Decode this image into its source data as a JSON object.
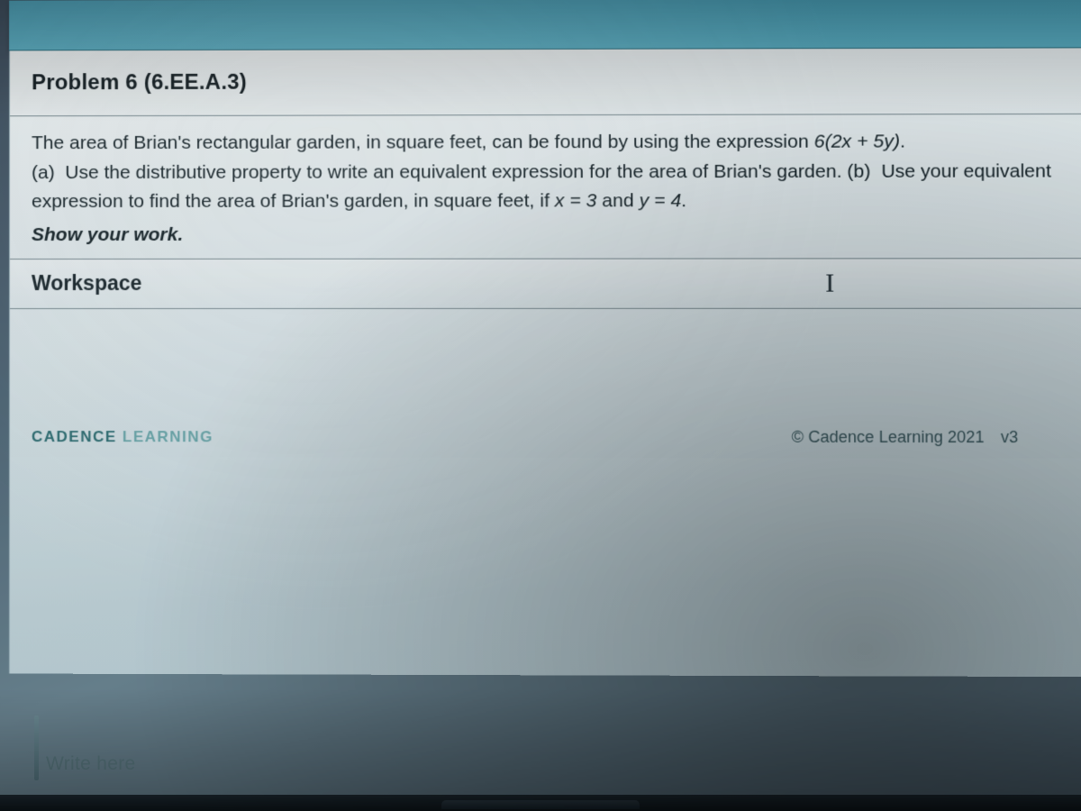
{
  "colors": {
    "topband_from": "#4aa0b8",
    "topband_to": "#5bb0c5",
    "page_bg_from": "#eef3f4",
    "page_bg_to": "#b7cdd5",
    "rule": "#7a8c93",
    "text": "#142228",
    "brand_a": "#2e6e73",
    "brand_b": "#6aa7ab",
    "footer_text": "#3b5b62",
    "write_here": "#58767e"
  },
  "typography": {
    "title_size_pt": 18,
    "body_size_pt": 16,
    "workspace_size_pt": 17,
    "footer_size_pt": 13
  },
  "problem": {
    "title": "Problem 6 (6.EE.A.3)",
    "intro_pre": "The area of Brian's rectangular garden, in square feet, can be found by using the expression ",
    "intro_expr": "6(2x + 5y)",
    "intro_post": ".",
    "part_a_label": "(a)",
    "part_a_text": "Use the distributive property to write an equivalent expression for the area of Brian's garden.",
    "part_b_label": "(b)",
    "part_b_pre": "Use your equivalent expression to find the area of Brian's garden, in square feet, if ",
    "part_b_x": "x = 3",
    "part_b_mid": " and ",
    "part_b_y": "y = 4",
    "part_b_post": ".",
    "show_work": "Show your work."
  },
  "workspace": {
    "label": "Workspace",
    "cursor_glyph": "I"
  },
  "footer": {
    "brand_a": "CADENCE",
    "brand_b": " LEARNING",
    "copyright": "© Cadence Learning 2021",
    "version": "v3"
  },
  "os": {
    "write_here": "Write here"
  }
}
